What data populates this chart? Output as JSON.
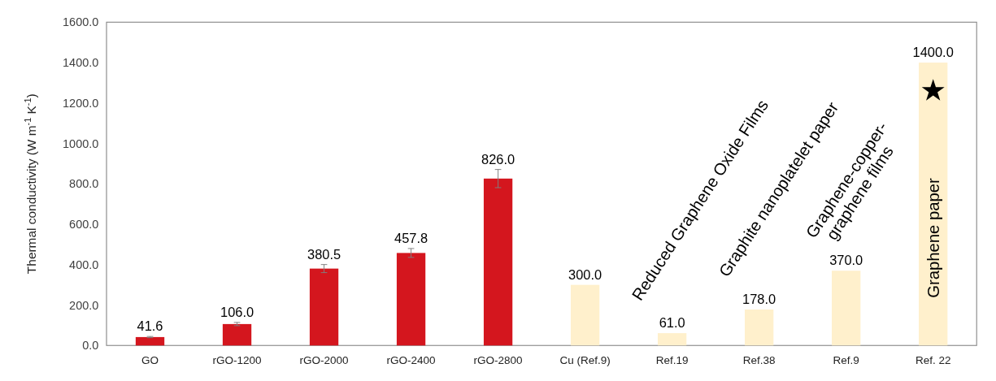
{
  "chart_data": {
    "type": "bar",
    "ylabel": "Thermal conductivity (W m$^{-1}$ K$^{-1}$)",
    "categories": [
      "GO",
      "rGO-1200",
      "rGO-2000",
      "rGO-2400",
      "rGO-2800",
      "Cu (Ref.9)",
      "Ref.19",
      "Ref.38",
      "Ref.9",
      "Ref. 22"
    ],
    "values": [
      41.6,
      106.0,
      380.5,
      457.8,
      826.0,
      300.0,
      61.0,
      178.0,
      370.0,
      1400.0
    ],
    "colors": [
      "#d4161e",
      "#d4161e",
      "#d4161e",
      "#d4161e",
      "#d4161e",
      "#fff0cc",
      "#fff0cc",
      "#fff0cc",
      "#fff0cc",
      "#fff0cc"
    ],
    "errors": [
      3,
      8,
      20,
      22,
      45,
      null,
      null,
      null,
      null,
      null
    ],
    "value_labels": [
      "41.6",
      "106.0",
      "380.5",
      "457.8",
      "826.0",
      "300.0",
      "61.0",
      "178.0",
      "370.0",
      "1400.0"
    ],
    "ylim": [
      0,
      1600
    ],
    "yticks": [
      {
        "value": 0,
        "label": "0.0"
      },
      {
        "value": 200,
        "label": "200.0"
      },
      {
        "value": 400,
        "label": "400.0"
      },
      {
        "value": 600,
        "label": "600.0"
      },
      {
        "value": 800,
        "label": "800.0"
      },
      {
        "value": 1000,
        "label": "1000.0"
      },
      {
        "value": 1200,
        "label": "1200.0"
      },
      {
        "value": 1400,
        "label": "1400.0"
      },
      {
        "value": 1600,
        "label": "1600.0"
      }
    ],
    "grid": false,
    "annotations": [
      "Reduced Graphene Oxide Films",
      "Graphite nanoplatelet paper",
      "Graphene-copper-\ngraphene films",
      "Graphene paper"
    ]
  }
}
